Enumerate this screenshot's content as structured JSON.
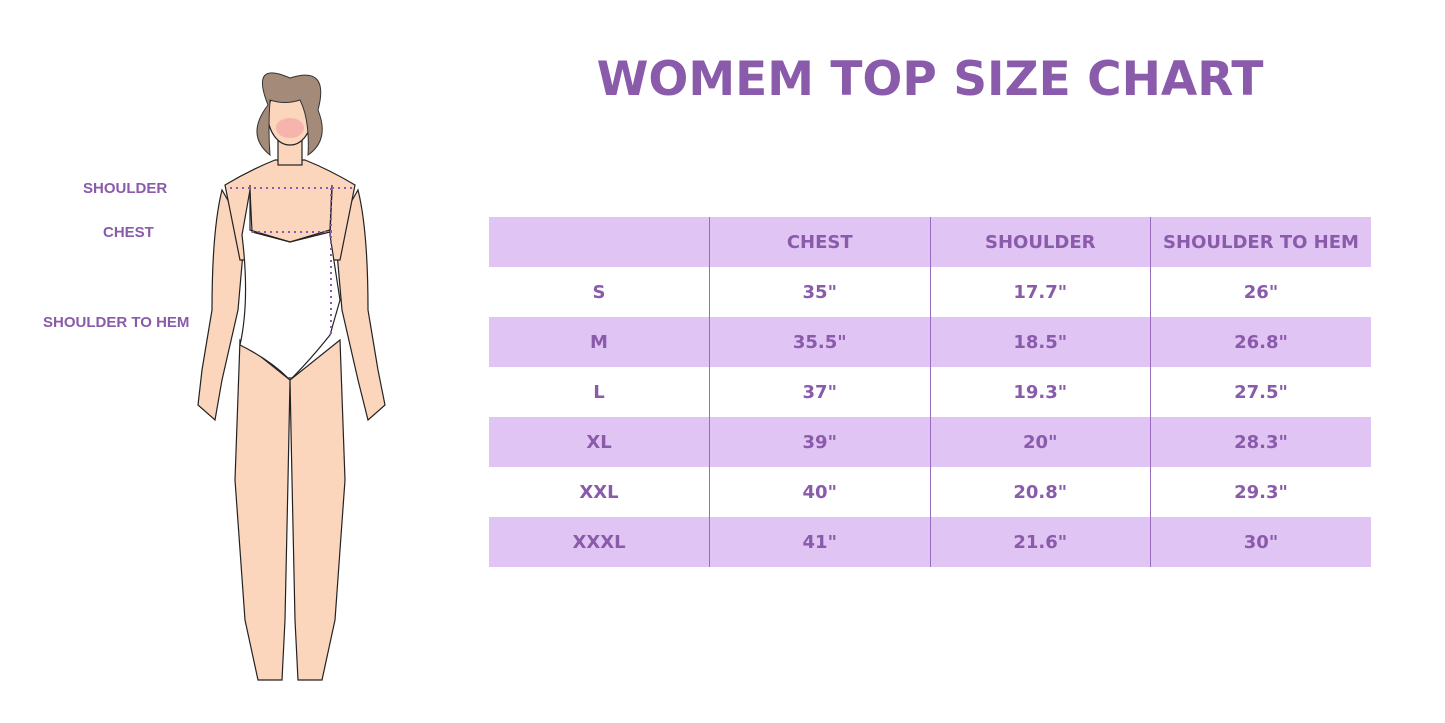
{
  "title": "WOMEM TOP SIZE CHART",
  "figure_labels": {
    "shoulder": "SHOULDER",
    "chest": "CHEST",
    "shoulder_to_hem": "SHOULDER TO HEM"
  },
  "table": {
    "headers": [
      "",
      "CHEST",
      "SHOULDER",
      "SHOULDER TO HEM"
    ],
    "rows": [
      [
        "S",
        "35\"",
        "17.7\"",
        "26\""
      ],
      [
        "M",
        "35.5\"",
        "18.5\"",
        "26.8\""
      ],
      [
        "L",
        "37\"",
        "19.3\"",
        "27.5\""
      ],
      [
        "XL",
        "39\"",
        "20\"",
        "28.3\""
      ],
      [
        "XXL",
        "40\"",
        "20.8\"",
        "29.3\""
      ],
      [
        "XXXL",
        "41\"",
        "21.6\"",
        "30\""
      ]
    ]
  },
  "colors": {
    "accent": "#8a5aab",
    "row_shade": "#e0c4f3",
    "skin": "#fcd5bd",
    "hair": "#a48a78"
  }
}
